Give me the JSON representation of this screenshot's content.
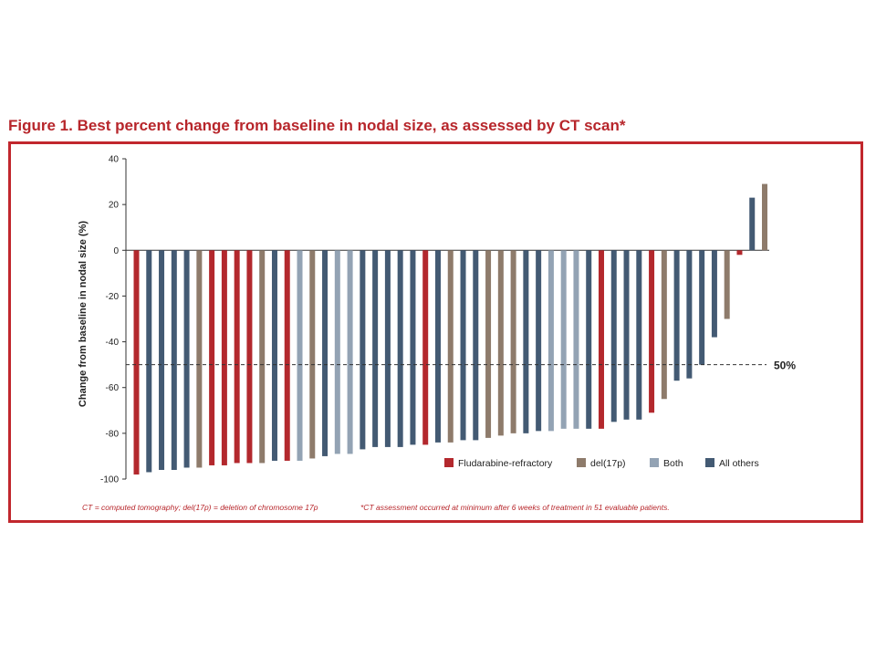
{
  "figure": {
    "title": "Figure 1. Best percent change from baseline in nodal size, as assessed by CT scan*",
    "footnote_left": "CT = computed tomography; del(17p) = deletion of chromosome 17p",
    "footnote_right": "*CT assessment occurred at minimum after 6 weeks of treatment in 51 evaluable patients."
  },
  "chart_data": {
    "type": "bar",
    "title": "",
    "xlabel": "",
    "ylabel": "Change from baseline in nodal size (%)",
    "ylim": [
      -100,
      40
    ],
    "yticks": [
      40,
      20,
      0,
      -20,
      -40,
      -60,
      -80,
      -100
    ],
    "grid": false,
    "legend_position": "bottom-right",
    "threshold": {
      "value": -50,
      "label": "50%"
    },
    "series": [
      {
        "name": "Fludarabine-refractory",
        "color": "#b3282d"
      },
      {
        "name": "del(17p)",
        "color": "#8e7b6b"
      },
      {
        "name": "Both",
        "color": "#93a3b4"
      },
      {
        "name": "All others",
        "color": "#435a73"
      }
    ],
    "bars": [
      {
        "value": -98,
        "series": 0
      },
      {
        "value": -97,
        "series": 3
      },
      {
        "value": -96,
        "series": 3
      },
      {
        "value": -96,
        "series": 3
      },
      {
        "value": -95,
        "series": 3
      },
      {
        "value": -95,
        "series": 1
      },
      {
        "value": -94,
        "series": 0
      },
      {
        "value": -94,
        "series": 0
      },
      {
        "value": -93,
        "series": 0
      },
      {
        "value": -93,
        "series": 0
      },
      {
        "value": -93,
        "series": 1
      },
      {
        "value": -92,
        "series": 3
      },
      {
        "value": -92,
        "series": 0
      },
      {
        "value": -92,
        "series": 2
      },
      {
        "value": -91,
        "series": 1
      },
      {
        "value": -90,
        "series": 3
      },
      {
        "value": -89,
        "series": 2
      },
      {
        "value": -89,
        "series": 2
      },
      {
        "value": -87,
        "series": 3
      },
      {
        "value": -86,
        "series": 3
      },
      {
        "value": -86,
        "series": 3
      },
      {
        "value": -86,
        "series": 3
      },
      {
        "value": -85,
        "series": 3
      },
      {
        "value": -85,
        "series": 0
      },
      {
        "value": -84,
        "series": 3
      },
      {
        "value": -84,
        "series": 1
      },
      {
        "value": -83,
        "series": 3
      },
      {
        "value": -83,
        "series": 3
      },
      {
        "value": -82,
        "series": 1
      },
      {
        "value": -81,
        "series": 1
      },
      {
        "value": -80,
        "series": 1
      },
      {
        "value": -80,
        "series": 3
      },
      {
        "value": -79,
        "series": 3
      },
      {
        "value": -79,
        "series": 2
      },
      {
        "value": -78,
        "series": 2
      },
      {
        "value": -78,
        "series": 2
      },
      {
        "value": -78,
        "series": 3
      },
      {
        "value": -78,
        "series": 0
      },
      {
        "value": -75,
        "series": 3
      },
      {
        "value": -74,
        "series": 3
      },
      {
        "value": -74,
        "series": 3
      },
      {
        "value": -71,
        "series": 0
      },
      {
        "value": -65,
        "series": 1
      },
      {
        "value": -57,
        "series": 3
      },
      {
        "value": -56,
        "series": 3
      },
      {
        "value": -50,
        "series": 3
      },
      {
        "value": -38,
        "series": 3
      },
      {
        "value": -30,
        "series": 1
      },
      {
        "value": -2,
        "series": 0
      },
      {
        "value": 23,
        "series": 3
      },
      {
        "value": 29,
        "series": 1
      }
    ]
  }
}
